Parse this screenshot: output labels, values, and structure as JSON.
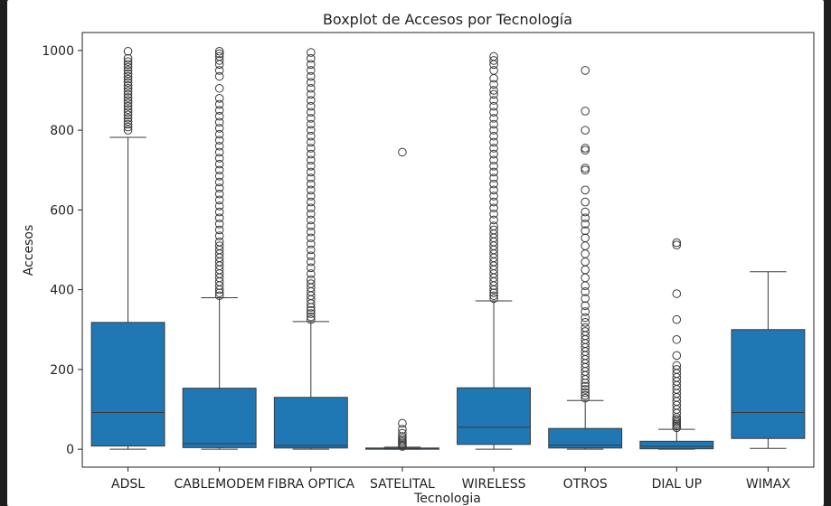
{
  "chart_data": {
    "type": "boxplot",
    "title": "Boxplot de Accesos por Tecnología",
    "xlabel": "Tecnologia",
    "ylabel": "Accesos",
    "ylim": [
      -45,
      1045
    ],
    "yticks": [
      0,
      200,
      400,
      600,
      800,
      1000
    ],
    "grid": false,
    "box_color": "#1f77b4",
    "categories": [
      "ADSL",
      "CABLEMODEM",
      "FIBRA OPTICA",
      "SATELITAL",
      "WIRELESS",
      "OTROS",
      "DIAL UP",
      "WIMAX"
    ],
    "boxes": [
      {
        "category": "ADSL",
        "whisker_low": 0,
        "q1": 8,
        "median": 92,
        "q3": 318,
        "whisker_high": 782,
        "outliers": [
          800,
          808,
          815,
          822,
          830,
          838,
          845,
          852,
          860,
          868,
          875,
          882,
          890,
          898,
          905,
          912,
          920,
          928,
          935,
          942,
          950,
          958,
          965,
          972,
          980,
          998
        ]
      },
      {
        "category": "CABLEMODEM",
        "whisker_low": 0,
        "q1": 4,
        "median": 14,
        "q3": 153,
        "whisker_high": 380,
        "outliers": [
          385,
          392,
          400,
          410,
          420,
          430,
          440,
          450,
          460,
          470,
          480,
          490,
          500,
          510,
          520,
          535,
          550,
          565,
          580,
          595,
          610,
          625,
          640,
          655,
          670,
          685,
          700,
          715,
          730,
          745,
          760,
          775,
          790,
          805,
          820,
          835,
          850,
          865,
          880,
          905,
          935,
          950,
          965,
          975,
          985,
          992,
          998
        ]
      },
      {
        "category": "FIBRA OPTICA",
        "whisker_low": 0,
        "q1": 3,
        "median": 9,
        "q3": 130,
        "whisker_high": 320,
        "outliers": [
          325,
          332,
          340,
          348,
          356,
          365,
          375,
          385,
          395,
          405,
          415,
          425,
          440,
          455,
          470,
          485,
          500,
          515,
          530,
          545,
          560,
          575,
          590,
          605,
          620,
          635,
          650,
          665,
          680,
          695,
          710,
          725,
          740,
          755,
          770,
          785,
          800,
          815,
          830,
          845,
          860,
          875,
          890,
          905,
          920,
          935,
          950,
          965,
          980,
          995
        ]
      },
      {
        "category": "SATELITAL",
        "whisker_low": 0,
        "q1": 0,
        "median": 1,
        "q3": 3,
        "whisker_high": 5,
        "outliers": [
          7,
          10,
          14,
          18,
          22,
          27,
          32,
          40,
          50,
          65,
          745
        ]
      },
      {
        "category": "WIRELESS",
        "whisker_low": 0,
        "q1": 12,
        "median": 55,
        "q3": 154,
        "whisker_high": 372,
        "outliers": [
          378,
          385,
          392,
          400,
          410,
          420,
          430,
          440,
          450,
          460,
          470,
          480,
          490,
          500,
          510,
          520,
          530,
          540,
          550,
          560,
          575,
          590,
          605,
          620,
          635,
          650,
          665,
          680,
          695,
          710,
          725,
          740,
          755,
          770,
          785,
          800,
          815,
          830,
          845,
          860,
          875,
          890,
          900,
          915,
          930,
          950,
          965,
          975,
          985
        ]
      },
      {
        "category": "OTROS",
        "whisker_low": 0,
        "q1": 3,
        "median": 10,
        "q3": 52,
        "whisker_high": 122,
        "outliers": [
          128,
          135,
          142,
          150,
          158,
          166,
          175,
          185,
          195,
          205,
          215,
          225,
          235,
          245,
          255,
          265,
          275,
          285,
          295,
          305,
          318,
          330,
          345,
          360,
          378,
          395,
          410,
          430,
          450,
          470,
          490,
          510,
          530,
          548,
          565,
          580,
          595,
          620,
          650,
          700,
          705,
          750,
          755,
          800,
          848,
          950
        ]
      },
      {
        "category": "DIAL UP",
        "whisker_low": 0,
        "q1": 1,
        "median": 7,
        "q3": 20,
        "whisker_high": 50,
        "outliers": [
          54,
          58,
          62,
          66,
          70,
          75,
          80,
          90,
          100,
          110,
          120,
          130,
          140,
          150,
          160,
          170,
          180,
          190,
          200,
          210,
          235,
          275,
          325,
          390,
          512,
          518
        ]
      },
      {
        "category": "WIMAX",
        "whisker_low": 2,
        "q1": 27,
        "median": 92,
        "q3": 300,
        "whisker_high": 445,
        "outliers": []
      }
    ]
  }
}
